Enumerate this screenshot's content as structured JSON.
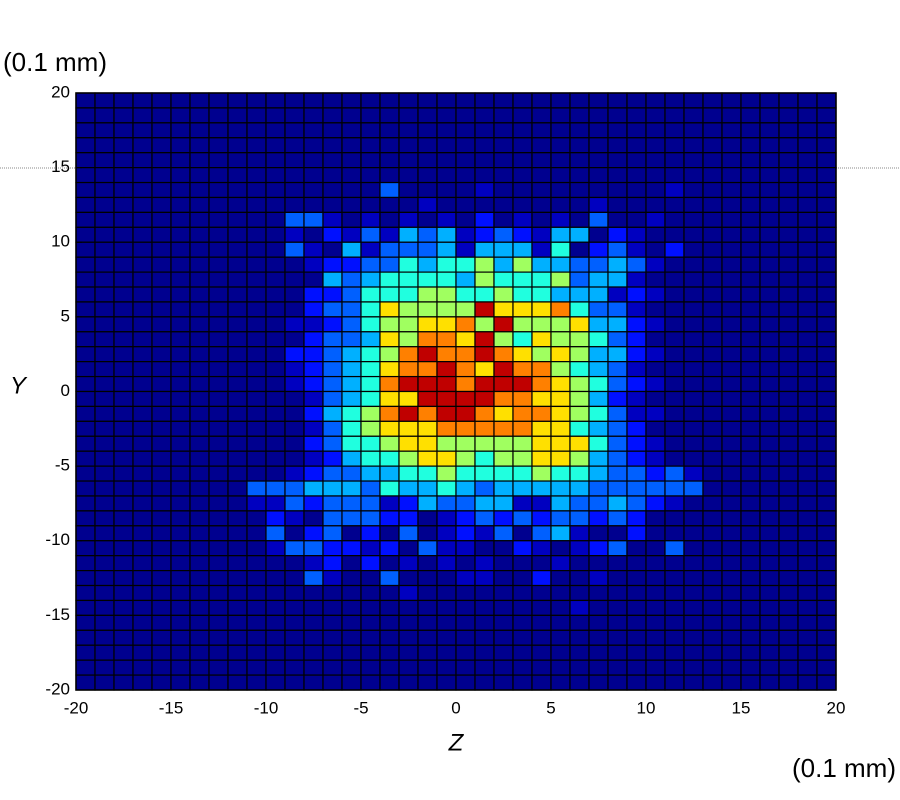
{
  "chart_data": {
    "type": "heatmap",
    "y_unit": "(0.1 mm)",
    "x_unit": "(0.1 mm)",
    "xlabel": "Z",
    "ylabel": "Y",
    "xlim": [
      -20,
      20
    ],
    "ylim": [
      -20,
      20
    ],
    "xticks": [
      -20,
      -15,
      -10,
      -5,
      0,
      5,
      10,
      15,
      20
    ],
    "yticks": [
      -20,
      -15,
      -10,
      -5,
      0,
      5,
      10,
      15,
      20
    ],
    "colormap": [
      "#00008f",
      "#0000c0",
      "#0010ff",
      "#0060ff",
      "#00b0ff",
      "#20ffdf",
      "#a0ff60",
      "#ffe000",
      "#ff8000",
      "#c00000"
    ],
    "z": [
      [
        0,
        0,
        0,
        0,
        0,
        0,
        0,
        0,
        0,
        0,
        0,
        0,
        0,
        0,
        0,
        0,
        0,
        0,
        0,
        0,
        0,
        0,
        0,
        0,
        0,
        0,
        0,
        0,
        0,
        0,
        0,
        0,
        0,
        0,
        0,
        0,
        0,
        0,
        0,
        0
      ],
      [
        0,
        0,
        0,
        0,
        0,
        0,
        0,
        0,
        0,
        0,
        0,
        0,
        0,
        0,
        0,
        0,
        0,
        0,
        0,
        0,
        0,
        0,
        0,
        0,
        0,
        0,
        0,
        0,
        0,
        0,
        0,
        0,
        0,
        0,
        0,
        0,
        0,
        0,
        0,
        0
      ],
      [
        0,
        0,
        0,
        0,
        0,
        0,
        0,
        0,
        0,
        0,
        0,
        0,
        0,
        0,
        0,
        0,
        0,
        0,
        0,
        0,
        0,
        0,
        0,
        0,
        0,
        0,
        0,
        0,
        0,
        0,
        0,
        0,
        0,
        0,
        0,
        0,
        0,
        0,
        0,
        0
      ],
      [
        0,
        0,
        0,
        0,
        0,
        0,
        0,
        0,
        0,
        0,
        0,
        0,
        0,
        0,
        0,
        0,
        0,
        0,
        0,
        0,
        0,
        0,
        0,
        0,
        0,
        0,
        0,
        0,
        0,
        0,
        0,
        0,
        0,
        0,
        0,
        0,
        0,
        0,
        0,
        0
      ],
      [
        0,
        0,
        0,
        0,
        0,
        0,
        0,
        0,
        0,
        0,
        0,
        0,
        0,
        0,
        0,
        0,
        0,
        0,
        0,
        0,
        0,
        0,
        0,
        0,
        0,
        0,
        0,
        0,
        0,
        0,
        0,
        0,
        0,
        0,
        0,
        0,
        0,
        0,
        0,
        0
      ],
      [
        0,
        0,
        0,
        0,
        0,
        0,
        0,
        0,
        0,
        0,
        0,
        0,
        0,
        0,
        0,
        0,
        0,
        0,
        0,
        0,
        0,
        0,
        0,
        0,
        0,
        0,
        0,
        0,
        0,
        0,
        0,
        0,
        0,
        0,
        0,
        0,
        0,
        0,
        0,
        0
      ],
      [
        0,
        0,
        0,
        0,
        0,
        0,
        0,
        0,
        0,
        0,
        0,
        0,
        0,
        0,
        0,
        0,
        3,
        0,
        0,
        0,
        0,
        1,
        0,
        0,
        0,
        0,
        0,
        0,
        0,
        0,
        0,
        1,
        0,
        0,
        0,
        0,
        0,
        0,
        0,
        0
      ],
      [
        0,
        0,
        0,
        0,
        0,
        0,
        0,
        0,
        0,
        0,
        0,
        0,
        0,
        0,
        0,
        0,
        0,
        0,
        1,
        0,
        0,
        0,
        0,
        0,
        0,
        0,
        0,
        1,
        0,
        0,
        0,
        0,
        0,
        0,
        0,
        0,
        0,
        0,
        0,
        0
      ],
      [
        0,
        0,
        0,
        0,
        0,
        0,
        0,
        0,
        0,
        0,
        0,
        3,
        3,
        1,
        0,
        1,
        0,
        1,
        0,
        1,
        0,
        2,
        0,
        1,
        0,
        1,
        0,
        3,
        0,
        0,
        1,
        0,
        0,
        0,
        0,
        0,
        0,
        0,
        0,
        0
      ],
      [
        0,
        0,
        0,
        0,
        0,
        0,
        0,
        0,
        0,
        0,
        0,
        1,
        0,
        2,
        1,
        3,
        1,
        4,
        3,
        4,
        1,
        2,
        3,
        2,
        1,
        4,
        4,
        0,
        2,
        1,
        0,
        0,
        0,
        0,
        0,
        0,
        0,
        0,
        0,
        0
      ],
      [
        0,
        0,
        0,
        0,
        0,
        0,
        0,
        0,
        0,
        0,
        0,
        3,
        1,
        0,
        4,
        1,
        3,
        3,
        3,
        4,
        1,
        4,
        4,
        4,
        1,
        5,
        0,
        2,
        3,
        1,
        0,
        2,
        0,
        0,
        0,
        0,
        0,
        0,
        0,
        0
      ],
      [
        0,
        0,
        0,
        0,
        0,
        0,
        0,
        0,
        0,
        0,
        0,
        0,
        1,
        2,
        2,
        3,
        3,
        5,
        4,
        5,
        5,
        6,
        4,
        6,
        4,
        4,
        3,
        3,
        4,
        3,
        1,
        0,
        0,
        0,
        0,
        0,
        0,
        0,
        0,
        0
      ],
      [
        0,
        0,
        0,
        0,
        0,
        0,
        0,
        0,
        0,
        0,
        0,
        0,
        0,
        4,
        3,
        4,
        5,
        5,
        5,
        5,
        4,
        6,
        5,
        5,
        5,
        6,
        3,
        4,
        4,
        1,
        0,
        0,
        0,
        0,
        0,
        0,
        0,
        0,
        0,
        0
      ],
      [
        0,
        0,
        0,
        0,
        0,
        0,
        0,
        0,
        0,
        0,
        0,
        0,
        2,
        2,
        3,
        5,
        5,
        5,
        6,
        6,
        5,
        5,
        6,
        5,
        5,
        4,
        4,
        4,
        1,
        2,
        1,
        0,
        0,
        0,
        0,
        0,
        0,
        0,
        0,
        0
      ],
      [
        0,
        0,
        0,
        0,
        0,
        0,
        0,
        0,
        0,
        0,
        0,
        0,
        2,
        3,
        3,
        5,
        7,
        6,
        6,
        6,
        6,
        9,
        7,
        7,
        7,
        8,
        5,
        3,
        3,
        1,
        0,
        0,
        0,
        0,
        0,
        0,
        0,
        0,
        0,
        0
      ],
      [
        0,
        0,
        0,
        0,
        0,
        0,
        0,
        0,
        0,
        0,
        0,
        1,
        1,
        2,
        3,
        5,
        6,
        6,
        7,
        7,
        8,
        6,
        9,
        6,
        6,
        6,
        7,
        4,
        4,
        2,
        1,
        0,
        0,
        0,
        0,
        0,
        0,
        0,
        0,
        0
      ],
      [
        0,
        0,
        0,
        0,
        0,
        0,
        0,
        0,
        0,
        0,
        0,
        0,
        2,
        3,
        3,
        4,
        7,
        6,
        8,
        8,
        7,
        9,
        6,
        5,
        7,
        6,
        6,
        5,
        3,
        2,
        0,
        0,
        0,
        0,
        0,
        0,
        0,
        0,
        0,
        0
      ],
      [
        0,
        0,
        0,
        0,
        0,
        0,
        0,
        0,
        0,
        0,
        0,
        2,
        2,
        3,
        4,
        5,
        6,
        8,
        9,
        8,
        8,
        9,
        8,
        7,
        6,
        7,
        6,
        4,
        4,
        2,
        1,
        0,
        0,
        0,
        0,
        0,
        0,
        0,
        0,
        0
      ],
      [
        0,
        0,
        0,
        0,
        0,
        0,
        0,
        0,
        0,
        0,
        0,
        1,
        2,
        3,
        4,
        5,
        7,
        8,
        8,
        9,
        8,
        7,
        9,
        8,
        8,
        6,
        5,
        4,
        3,
        1,
        0,
        0,
        0,
        0,
        0,
        0,
        0,
        0,
        0,
        0
      ],
      [
        0,
        0,
        0,
        0,
        0,
        0,
        0,
        0,
        0,
        0,
        0,
        1,
        2,
        3,
        4,
        5,
        8,
        9,
        9,
        9,
        8,
        9,
        9,
        9,
        8,
        7,
        6,
        5,
        3,
        2,
        1,
        0,
        0,
        0,
        0,
        0,
        0,
        0,
        0,
        0
      ],
      [
        0,
        0,
        0,
        0,
        0,
        0,
        0,
        0,
        0,
        0,
        0,
        0,
        1,
        3,
        4,
        5,
        7,
        7,
        9,
        9,
        9,
        9,
        8,
        8,
        7,
        7,
        6,
        4,
        2,
        1,
        0,
        0,
        0,
        0,
        0,
        0,
        0,
        0,
        0,
        0
      ],
      [
        0,
        0,
        0,
        0,
        0,
        0,
        0,
        0,
        0,
        0,
        0,
        0,
        2,
        4,
        5,
        6,
        8,
        9,
        8,
        9,
        9,
        8,
        7,
        8,
        8,
        7,
        6,
        5,
        3,
        1,
        1,
        0,
        0,
        0,
        0,
        0,
        0,
        0,
        0,
        0
      ],
      [
        0,
        0,
        0,
        0,
        0,
        0,
        0,
        0,
        0,
        0,
        0,
        0,
        1,
        3,
        5,
        6,
        7,
        7,
        7,
        8,
        8,
        8,
        8,
        8,
        7,
        7,
        5,
        4,
        3,
        2,
        0,
        0,
        0,
        0,
        0,
        0,
        0,
        0,
        0,
        0
      ],
      [
        0,
        0,
        0,
        0,
        0,
        0,
        0,
        0,
        0,
        0,
        0,
        0,
        2,
        3,
        5,
        5,
        6,
        7,
        7,
        6,
        6,
        6,
        6,
        6,
        7,
        7,
        7,
        5,
        3,
        2,
        1,
        0,
        0,
        0,
        0,
        0,
        0,
        0,
        0,
        0
      ],
      [
        0,
        0,
        0,
        0,
        0,
        0,
        0,
        0,
        0,
        0,
        0,
        0,
        1,
        2,
        4,
        5,
        5,
        6,
        7,
        7,
        6,
        5,
        6,
        6,
        7,
        7,
        6,
        4,
        3,
        2,
        1,
        0,
        0,
        0,
        0,
        0,
        0,
        0,
        0,
        0
      ],
      [
        0,
        0,
        0,
        0,
        0,
        0,
        0,
        0,
        0,
        0,
        0,
        1,
        2,
        3,
        3,
        4,
        4,
        5,
        5,
        6,
        5,
        5,
        5,
        5,
        6,
        5,
        5,
        4,
        3,
        3,
        2,
        3,
        1,
        0,
        0,
        0,
        0,
        0,
        0,
        0
      ],
      [
        0,
        0,
        0,
        0,
        0,
        0,
        0,
        0,
        0,
        3,
        3,
        3,
        4,
        4,
        4,
        3,
        5,
        4,
        4,
        5,
        4,
        3,
        4,
        4,
        4,
        4,
        4,
        3,
        3,
        3,
        3,
        3,
        3,
        0,
        0,
        0,
        0,
        0,
        0,
        0
      ],
      [
        0,
        0,
        0,
        0,
        0,
        0,
        0,
        0,
        0,
        1,
        1,
        3,
        2,
        3,
        3,
        3,
        1,
        2,
        4,
        3,
        3,
        4,
        4,
        1,
        1,
        4,
        3,
        3,
        4,
        3,
        2,
        1,
        0,
        0,
        0,
        0,
        0,
        0,
        0,
        0
      ],
      [
        0,
        0,
        0,
        0,
        0,
        0,
        0,
        0,
        0,
        0,
        2,
        1,
        0,
        3,
        3,
        3,
        2,
        2,
        0,
        1,
        2,
        3,
        2,
        3,
        2,
        3,
        3,
        2,
        3,
        2,
        0,
        0,
        0,
        0,
        0,
        0,
        0,
        0,
        0,
        0
      ],
      [
        0,
        0,
        0,
        0,
        0,
        0,
        0,
        0,
        0,
        0,
        3,
        0,
        2,
        3,
        0,
        2,
        0,
        3,
        0,
        1,
        2,
        1,
        3,
        0,
        3,
        4,
        1,
        0,
        0,
        2,
        0,
        0,
        0,
        0,
        0,
        0,
        0,
        0,
        0,
        0
      ],
      [
        0,
        0,
        0,
        0,
        0,
        0,
        0,
        0,
        0,
        0,
        1,
        3,
        3,
        2,
        2,
        1,
        2,
        0,
        3,
        1,
        1,
        0,
        0,
        2,
        1,
        0,
        1,
        2,
        3,
        0,
        0,
        3,
        0,
        0,
        0,
        0,
        0,
        0,
        0,
        0
      ],
      [
        0,
        0,
        0,
        0,
        0,
        0,
        0,
        0,
        0,
        0,
        0,
        0,
        1,
        2,
        0,
        2,
        0,
        1,
        0,
        1,
        0,
        1,
        0,
        0,
        0,
        1,
        0,
        0,
        0,
        0,
        0,
        0,
        0,
        0,
        0,
        0,
        0,
        0,
        0,
        0
      ],
      [
        0,
        0,
        0,
        0,
        0,
        0,
        0,
        0,
        0,
        0,
        0,
        0,
        3,
        1,
        0,
        0,
        3,
        0,
        0,
        0,
        1,
        1,
        0,
        0,
        2,
        0,
        0,
        1,
        0,
        0,
        0,
        0,
        0,
        0,
        0,
        0,
        0,
        0,
        0,
        0
      ],
      [
        0,
        0,
        0,
        0,
        0,
        0,
        0,
        0,
        0,
        0,
        0,
        0,
        0,
        0,
        0,
        0,
        0,
        1,
        0,
        0,
        0,
        0,
        0,
        0,
        0,
        0,
        0,
        0,
        0,
        0,
        0,
        0,
        0,
        0,
        0,
        0,
        0,
        0,
        0,
        0
      ],
      [
        0,
        0,
        0,
        0,
        0,
        0,
        0,
        0,
        0,
        0,
        0,
        0,
        0,
        0,
        0,
        0,
        0,
        0,
        0,
        0,
        0,
        0,
        0,
        0,
        0,
        0,
        1,
        0,
        0,
        0,
        0,
        0,
        0,
        0,
        0,
        0,
        0,
        0,
        0,
        0
      ],
      [
        0,
        0,
        0,
        0,
        0,
        0,
        0,
        0,
        0,
        0,
        0,
        0,
        0,
        0,
        0,
        0,
        0,
        0,
        0,
        0,
        0,
        0,
        0,
        0,
        0,
        0,
        0,
        0,
        0,
        0,
        0,
        0,
        0,
        0,
        0,
        0,
        0,
        0,
        0,
        0
      ],
      [
        0,
        0,
        0,
        0,
        0,
        0,
        0,
        0,
        0,
        0,
        0,
        0,
        0,
        0,
        0,
        0,
        0,
        0,
        0,
        0,
        0,
        0,
        0,
        0,
        0,
        0,
        0,
        0,
        0,
        0,
        0,
        0,
        0,
        0,
        0,
        0,
        0,
        0,
        0,
        0
      ],
      [
        0,
        0,
        0,
        0,
        0,
        0,
        0,
        0,
        0,
        0,
        0,
        0,
        0,
        0,
        0,
        0,
        0,
        0,
        0,
        0,
        0,
        0,
        0,
        0,
        0,
        0,
        0,
        0,
        0,
        0,
        0,
        0,
        0,
        0,
        0,
        0,
        0,
        0,
        0,
        0
      ],
      [
        0,
        0,
        0,
        0,
        0,
        0,
        0,
        0,
        0,
        0,
        0,
        0,
        0,
        0,
        0,
        0,
        0,
        0,
        0,
        0,
        0,
        0,
        0,
        0,
        0,
        0,
        0,
        0,
        0,
        0,
        0,
        0,
        0,
        0,
        0,
        0,
        0,
        0,
        0,
        0
      ],
      [
        0,
        0,
        0,
        0,
        0,
        0,
        0,
        0,
        0,
        0,
        0,
        0,
        0,
        0,
        0,
        0,
        0,
        0,
        0,
        0,
        0,
        0,
        0,
        0,
        0,
        0,
        0,
        0,
        0,
        0,
        0,
        0,
        0,
        0,
        0,
        0,
        0,
        0,
        0,
        0
      ]
    ]
  }
}
